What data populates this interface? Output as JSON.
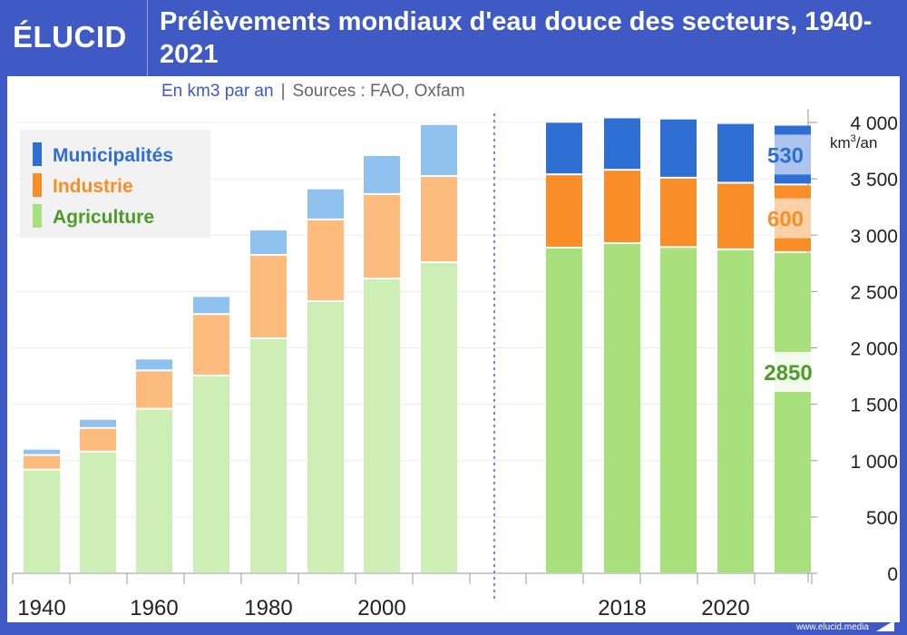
{
  "header": {
    "logo": "ÉLUCID",
    "title": "Prélèvements mondiaux d'eau douce des secteurs, 1940-2021"
  },
  "subtitle": {
    "unit": "En km3 par an",
    "separator": "|",
    "sources": "Sources : FAO, Oxfam"
  },
  "footer": {
    "url": "www.elucid.media"
  },
  "chart_data": {
    "type": "bar",
    "stacked": true,
    "title": "Prélèvements mondiaux d'eau douce des secteurs, 1940-2021",
    "ylabel": "km³/an",
    "ylabel_base": "km",
    "ylabel_sup": "3",
    "ylabel_tail": "/an",
    "ylim": [
      0,
      4000
    ],
    "yticks": [
      0,
      500,
      1000,
      1500,
      2000,
      2500,
      3000,
      3500,
      4000
    ],
    "ytick_labels": [
      "0",
      "500",
      "1 000",
      "1 500",
      "2 000",
      "2 500",
      "3 000",
      "3 500",
      "4 000"
    ],
    "y_axis_side": "right",
    "grid": true,
    "legend": "top-left",
    "categories": [
      "1940",
      "1950",
      "1960",
      "1970",
      "1980",
      "1990",
      "2000",
      "2010",
      "2017",
      "2018",
      "2019",
      "2020",
      "2021"
    ],
    "xtick_labels": {
      "1940": "1940",
      "1960": "1960",
      "1980": "1980",
      "2000": "2000",
      "2018": "2018",
      "2020": "2020"
    },
    "series": [
      {
        "name": "Agriculture",
        "values": [
          920,
          1080,
          1460,
          1755,
          2085,
          2415,
          2615,
          2760,
          2890,
          2930,
          2895,
          2875,
          2850
        ],
        "color_historic": "#cdeeb5",
        "color_recent": "#a8e07c",
        "label_color": "#4f9a2a"
      },
      {
        "name": "Industrie",
        "values": [
          130,
          210,
          340,
          545,
          740,
          725,
          750,
          765,
          650,
          650,
          615,
          590,
          600
        ],
        "color_historic": "#fdbb7e",
        "color_recent": "#f98d27",
        "label_color": "#f98d27"
      },
      {
        "name": "Municipalités",
        "values": [
          55,
          80,
          105,
          160,
          225,
          275,
          345,
          460,
          465,
          465,
          525,
          530,
          530
        ],
        "color_historic": "#8fc2ee",
        "color_recent": "#2f6fd4",
        "label_color": "#2f6fd4"
      }
    ],
    "data_labels": {
      "category": "2021",
      "values": [
        "2850",
        "600",
        "530"
      ]
    },
    "period_divider_after": "2010"
  }
}
